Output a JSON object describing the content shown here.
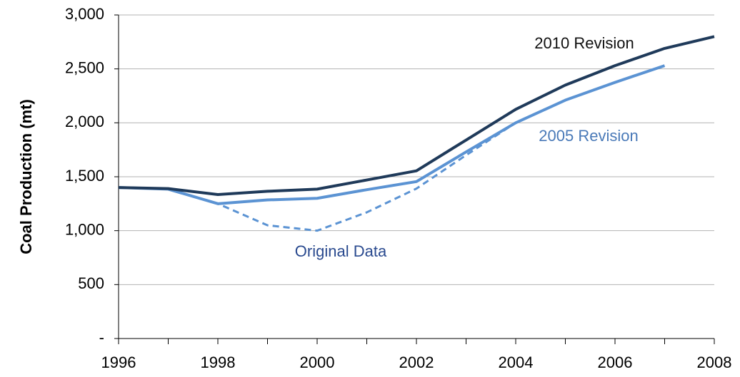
{
  "chart_data": {
    "type": "line",
    "y_label": "Coal Production (mt)",
    "x": [
      1996,
      1997,
      1998,
      1999,
      2000,
      2001,
      2002,
      2003,
      2004,
      2005,
      2006,
      2007,
      2008
    ],
    "xlim": [
      1996,
      2008
    ],
    "xticks": [
      1996,
      1998,
      2000,
      2002,
      2004,
      2006,
      2008
    ],
    "ylim": [
      0,
      3000
    ],
    "yticks": [
      {
        "value": 0,
        "label": "-"
      },
      500,
      {
        "value": 1000,
        "label": "1,000"
      },
      {
        "value": 1500,
        "label": "1,500"
      },
      {
        "value": 2000,
        "label": "2,000"
      },
      {
        "value": 2500,
        "label": "2,500"
      },
      {
        "value": 3000,
        "label": "3,000"
      }
    ],
    "grid": true,
    "series": [
      {
        "name": "2010 Revision",
        "color": "#1f3a5a",
        "dashed": false,
        "values": [
          1400,
          1390,
          1335,
          1365,
          1385,
          1470,
          1555,
          1840,
          2125,
          2350,
          2530,
          2690,
          2800
        ]
      },
      {
        "name": "2005 Revision",
        "color": "#5b93d3",
        "dashed": false,
        "values": [
          1400,
          1385,
          1250,
          1285,
          1300,
          1380,
          1455,
          1730,
          2000,
          2210,
          2375,
          2530,
          null
        ]
      },
      {
        "name": "Original Data",
        "color": "#5b93d3",
        "dashed": true,
        "values": [
          1400,
          1385,
          1250,
          1050,
          1000,
          1170,
          1390,
          1700,
          2000,
          null,
          null,
          null,
          null
        ]
      }
    ]
  }
}
